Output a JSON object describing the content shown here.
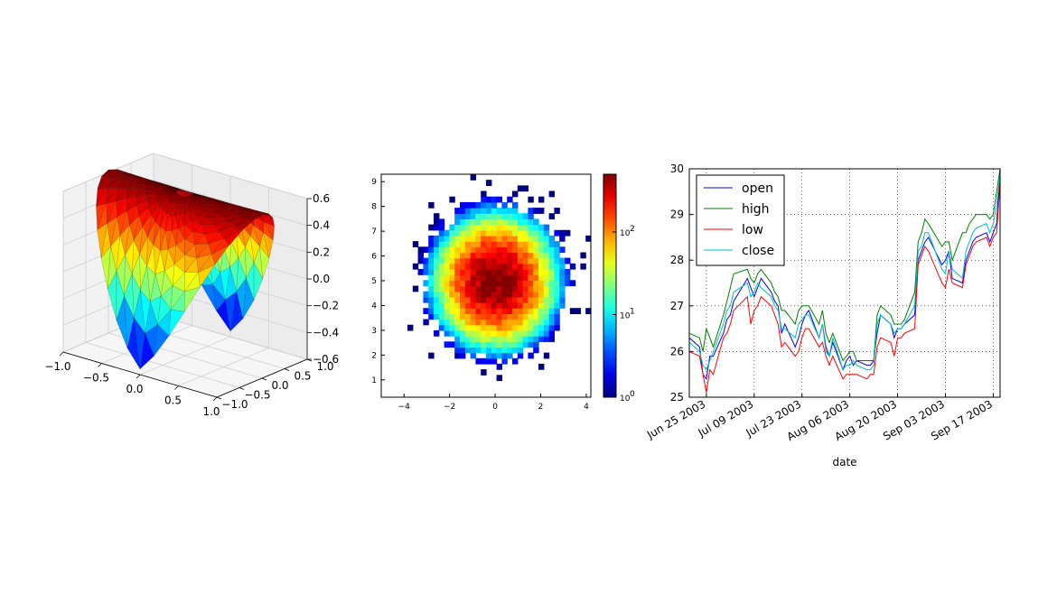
{
  "chart_data": [
    {
      "type": "surface3d",
      "title": "",
      "xlim": [
        -1.0,
        1.0
      ],
      "ylim": [
        -1.0,
        1.0
      ],
      "zlim": [
        -0.6,
        0.6
      ],
      "x_ticks": [
        "−1.0",
        "−0.5",
        "0.0",
        "0.5",
        "1.0"
      ],
      "y_ticks": [
        "−1.0",
        "−0.5",
        "0.0",
        "0.5",
        "1.0"
      ],
      "z_ticks": [
        "0.6",
        "0.4",
        "0.2",
        "0.0",
        "−0.2",
        "−0.4",
        "−0.6"
      ],
      "colormap": "jet",
      "grid": true
    },
    {
      "type": "heatmap",
      "title": "",
      "description": "2D histogram",
      "xlim": [
        -5,
        4.2
      ],
      "ylim": [
        0.3,
        9.3
      ],
      "center": [
        0,
        5
      ],
      "x_ticks": [
        "−4",
        "−2",
        "0",
        "2",
        "4"
      ],
      "y_ticks": [
        "1",
        "2",
        "3",
        "4",
        "5",
        "6",
        "7",
        "8",
        "9"
      ],
      "colorbar": {
        "scale": "log",
        "range": [
          1,
          500
        ],
        "ticks": [
          "10",
          "10",
          "10"
        ],
        "tick_exponents": [
          "2",
          "1",
          "0"
        ]
      },
      "colormap": "jet"
    },
    {
      "type": "line",
      "title": "",
      "xlabel": "date",
      "ylabel": "",
      "ylim": [
        25,
        30
      ],
      "y_ticks": [
        "30",
        "29",
        "28",
        "27",
        "26",
        "25"
      ],
      "x_tick_labels": [
        "Jun 25 2003",
        "Jul 09 2003",
        "Jul 23 2003",
        "Aug 06 2003",
        "Aug 20 2003",
        "Sep 03 2003",
        "Sep 17 2003"
      ],
      "x": [
        "2003-06-20",
        "2003-06-23",
        "2003-06-24",
        "2003-06-25",
        "2003-06-26",
        "2003-06-27",
        "2003-06-30",
        "2003-07-01",
        "2003-07-02",
        "2003-07-03",
        "2003-07-07",
        "2003-07-08",
        "2003-07-09",
        "2003-07-10",
        "2003-07-11",
        "2003-07-14",
        "2003-07-15",
        "2003-07-16",
        "2003-07-17",
        "2003-07-18",
        "2003-07-21",
        "2003-07-22",
        "2003-07-23",
        "2003-07-24",
        "2003-07-25",
        "2003-07-28",
        "2003-07-29",
        "2003-07-30",
        "2003-07-31",
        "2003-08-01",
        "2003-08-04",
        "2003-08-05",
        "2003-08-06",
        "2003-08-07",
        "2003-08-08",
        "2003-08-11",
        "2003-08-12",
        "2003-08-13",
        "2003-08-14",
        "2003-08-15",
        "2003-08-18",
        "2003-08-19",
        "2003-08-20",
        "2003-08-21",
        "2003-08-22",
        "2003-08-25",
        "2003-08-26",
        "2003-08-27",
        "2003-08-28",
        "2003-08-29",
        "2003-09-02",
        "2003-09-03",
        "2003-09-04",
        "2003-09-05",
        "2003-09-08",
        "2003-09-09",
        "2003-09-10",
        "2003-09-11",
        "2003-09-12",
        "2003-09-15",
        "2003-09-16",
        "2003-09-17",
        "2003-09-18",
        "2003-09-19"
      ],
      "grid": true,
      "legend_position": "top-left",
      "series": [
        {
          "name": "open",
          "color": "#0000ff",
          "values": [
            26.3,
            26.1,
            25.5,
            25.4,
            25.9,
            25.9,
            26.4,
            26.7,
            26.8,
            27.1,
            27.6,
            27.4,
            27.2,
            27.4,
            27.6,
            27.3,
            27.1,
            27.0,
            26.4,
            26.6,
            26.1,
            26.3,
            26.6,
            26.8,
            26.9,
            26.3,
            26.6,
            26.1,
            25.9,
            26.2,
            25.6,
            25.8,
            25.9,
            25.7,
            25.8,
            25.7,
            25.7,
            25.8,
            26.4,
            26.8,
            26.6,
            26.3,
            26.5,
            26.5,
            26.6,
            26.8,
            28.0,
            28.2,
            28.4,
            28.5,
            27.9,
            28.0,
            28.2,
            27.6,
            27.5,
            28.0,
            28.2,
            28.4,
            28.5,
            28.6,
            28.4,
            28.6,
            28.8,
            29.9
          ]
        },
        {
          "name": "high",
          "color": "#008000",
          "values": [
            26.4,
            26.3,
            26.0,
            26.5,
            26.3,
            26.1,
            26.8,
            27.1,
            27.4,
            27.7,
            27.8,
            27.6,
            27.5,
            27.7,
            27.8,
            27.5,
            27.3,
            27.2,
            26.9,
            26.9,
            26.6,
            26.9,
            27.0,
            27.0,
            27.0,
            26.6,
            26.9,
            26.4,
            26.2,
            26.4,
            25.8,
            25.9,
            26.0,
            26.0,
            25.8,
            25.8,
            25.8,
            25.8,
            26.8,
            27.0,
            26.8,
            26.6,
            26.6,
            26.6,
            26.7,
            27.3,
            28.4,
            28.6,
            28.9,
            28.8,
            28.3,
            28.4,
            28.4,
            28.0,
            28.6,
            28.6,
            28.8,
            28.9,
            29.0,
            29.0,
            28.9,
            29.0,
            29.5,
            30.0
          ]
        },
        {
          "name": "low",
          "color": "#ff0000",
          "values": [
            26.0,
            25.9,
            25.5,
            25.1,
            25.6,
            25.5,
            26.3,
            26.4,
            26.6,
            26.9,
            27.2,
            26.6,
            26.9,
            27.0,
            27.2,
            27.0,
            26.8,
            26.6,
            26.1,
            26.2,
            25.9,
            26.0,
            26.3,
            26.5,
            26.5,
            26.1,
            26.2,
            25.9,
            25.7,
            25.9,
            25.4,
            25.5,
            25.5,
            25.5,
            25.5,
            25.4,
            25.5,
            25.5,
            26.1,
            26.3,
            26.2,
            25.9,
            26.3,
            26.3,
            26.4,
            26.5,
            27.9,
            28.1,
            28.3,
            28.2,
            27.5,
            27.4,
            27.8,
            27.5,
            27.4,
            27.9,
            28.1,
            28.3,
            28.4,
            28.5,
            28.3,
            28.5,
            28.6,
            29.7
          ]
        },
        {
          "name": "close",
          "color": "#00bfbf",
          "values": [
            26.2,
            26.0,
            25.7,
            25.6,
            25.8,
            26.0,
            26.6,
            26.9,
            27.0,
            27.3,
            27.5,
            27.2,
            27.3,
            27.5,
            27.4,
            27.2,
            27.0,
            26.9,
            26.5,
            26.5,
            26.3,
            26.6,
            26.7,
            26.8,
            26.8,
            26.3,
            26.6,
            26.0,
            25.9,
            26.3,
            25.6,
            25.7,
            25.7,
            25.8,
            25.7,
            25.6,
            25.6,
            25.7,
            26.6,
            26.8,
            26.6,
            26.4,
            26.5,
            26.5,
            26.6,
            27.0,
            28.2,
            28.3,
            28.6,
            28.6,
            27.8,
            27.7,
            28.2,
            27.8,
            27.6,
            28.2,
            28.4,
            28.6,
            28.7,
            28.8,
            28.6,
            28.8,
            29.2,
            29.9
          ]
        }
      ]
    }
  ]
}
